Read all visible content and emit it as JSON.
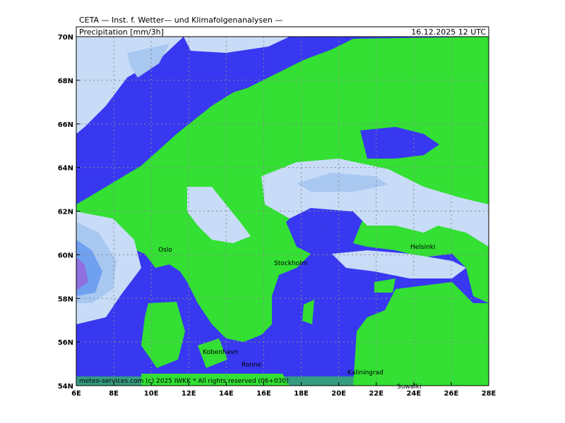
{
  "header": {
    "title": "CETA — Inst. f. Wetter— und Klimafolgenanalysen —",
    "parameter": "Precipitation [mm/3h]",
    "valid_time": "16.12.2025 12 UTC"
  },
  "axes": {
    "latitude_labels": [
      "70N",
      "68N",
      "66N",
      "64N",
      "62N",
      "60N",
      "58N",
      "56N",
      "54N"
    ],
    "longitude_labels": [
      "6E",
      "8E",
      "10E",
      "12E",
      "14E",
      "16E",
      "18E",
      "20E",
      "22E",
      "24E",
      "26E",
      "28E"
    ]
  },
  "cities": [
    {
      "label": "Oslo"
    },
    {
      "label": "Stockholm"
    },
    {
      "label": "Helsinki"
    },
    {
      "label": "Kobenhavn"
    },
    {
      "label": "Ronne"
    },
    {
      "label": "Kaliningrad"
    },
    {
      "label": "Suwalki"
    }
  ],
  "footer": "meteo-services.com (c) 2025 IWKK * All rights reserved (06+030)"
}
